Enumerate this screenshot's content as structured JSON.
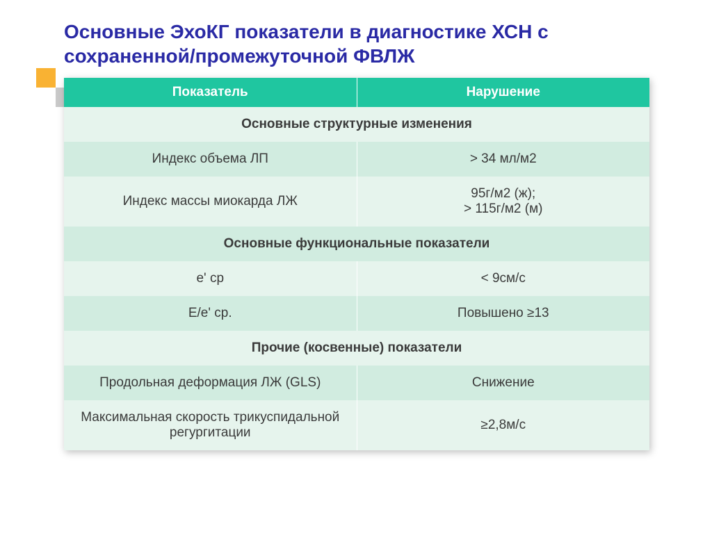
{
  "title_color": "#2a2aa5",
  "title": "Основные ЭхоКГ показатели в диагностике ХСН с сохраненной/промежуточной ФВЛЖ",
  "header_bg": "#1fc6a0",
  "row_light": "#e6f4ed",
  "row_dark": "#d1ece0",
  "text_color": "#3a3a3a",
  "columns": [
    "Показатель",
    "Нарушение"
  ],
  "groups": [
    {
      "title": "Основные структурные изменения",
      "rows": [
        {
          "param": "Индекс объема ЛП",
          "value": "> 34 мл/м2"
        },
        {
          "param": "Индекс массы миокарда ЛЖ",
          "value": "95г/м2 (ж);\n> 115г/м2 (м)"
        }
      ]
    },
    {
      "title": "Основные функциональные показатели",
      "rows": [
        {
          "param": "e' ср",
          "value": "< 9см/с"
        },
        {
          "param": "E/e' ср.",
          "value": "Повышено ≥13"
        }
      ]
    },
    {
      "title": "Прочие (косвенные) показатели",
      "rows": [
        {
          "param": "Продольная деформация ЛЖ (GLS)",
          "value": "Снижение"
        },
        {
          "param": "Максимальная скорость трикуспидальной регургитации",
          "value": "≥2,8м/с"
        }
      ]
    }
  ]
}
